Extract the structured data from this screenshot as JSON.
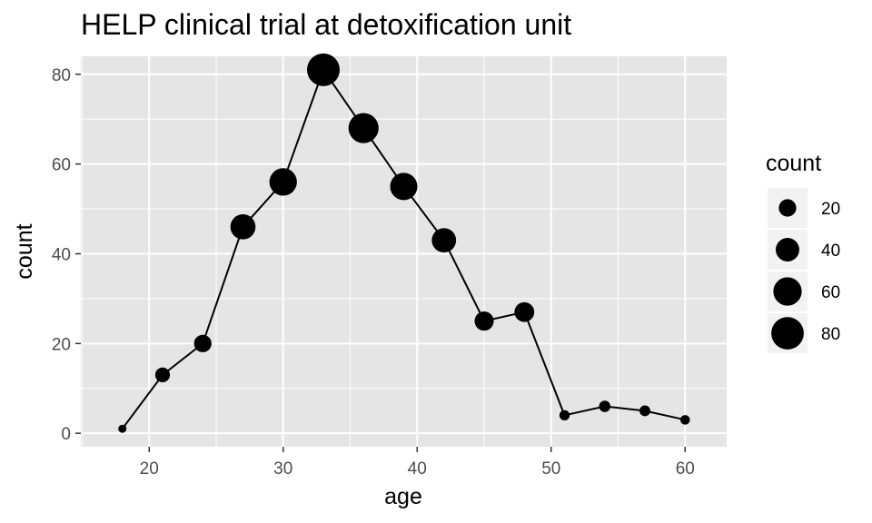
{
  "chart_data": {
    "type": "scatter",
    "title": "HELP clinical trial at detoxification unit",
    "xlabel": "age",
    "ylabel": "count",
    "xlim": [
      14.9,
      63.1
    ],
    "ylim": [
      -3,
      84
    ],
    "x_ticks": [
      20,
      30,
      40,
      50,
      60
    ],
    "y_ticks": [
      0,
      20,
      40,
      60,
      80
    ],
    "x": [
      18,
      21,
      24,
      27,
      30,
      33,
      36,
      39,
      42,
      45,
      48,
      51,
      54,
      57,
      60
    ],
    "y": [
      1,
      13,
      20,
      46,
      56,
      81,
      68,
      55,
      43,
      25,
      27,
      4,
      6,
      5,
      3
    ],
    "size_variable": "count",
    "connected_line": true,
    "grid": true,
    "legend": {
      "title": "count",
      "placement": "right",
      "entries": [
        20,
        40,
        60,
        80
      ]
    },
    "colors": {
      "panel_background": "#e5e5e5",
      "grid": "#ffffff",
      "marks": "#000000",
      "legend_key_background": "#f2f2f2"
    }
  }
}
